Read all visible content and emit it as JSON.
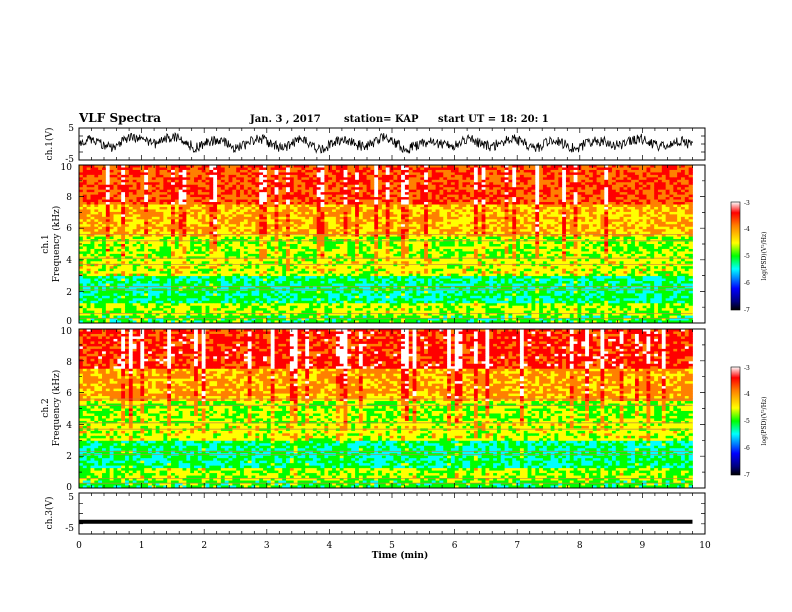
{
  "header": {
    "title": "VLF Spectra",
    "date": "Jan. 3 , 2017",
    "station": "station= KAP",
    "start_time": "start UT =  18: 20: 1"
  },
  "chart_data": [
    {
      "type": "line",
      "id": "ch1-waveform",
      "ylabel": "ch.1(V)",
      "ylim": [
        -5,
        5
      ],
      "y_ticks": [
        "5",
        "-5"
      ],
      "x_range_min": [
        0,
        9.8
      ],
      "baseline": 0
    },
    {
      "type": "heatmap",
      "id": "ch1-spectrogram",
      "ylabel_line1": "ch.1",
      "ylabel_line2": "Frequency (kHz)",
      "ylim": [
        0,
        10
      ],
      "y_ticks": [
        "0",
        "2",
        "4",
        "6",
        "8",
        "10"
      ],
      "x_range_min": [
        0,
        9.8
      ],
      "colorscale": [
        "#000080",
        "#0000ff",
        "#00ffff",
        "#00ff00",
        "#ffff00",
        "#ff8000",
        "#ff0000",
        "#ffffff"
      ],
      "colorbar": {
        "label": "log(PSD)(V²/Hz)",
        "ticks": [
          "-3",
          "-4",
          "-5",
          "-6",
          "-7"
        ],
        "range": [
          -7,
          -3
        ]
      }
    },
    {
      "type": "heatmap",
      "id": "ch2-spectrogram",
      "ylabel_line1": "ch.2",
      "ylabel_line2": "Frequency (kHz)",
      "ylim": [
        0,
        10
      ],
      "y_ticks": [
        "0",
        "2",
        "4",
        "6",
        "8",
        "10"
      ],
      "x_range_min": [
        0,
        9.8
      ],
      "colorscale": [
        "#000080",
        "#0000ff",
        "#00ffff",
        "#00ff00",
        "#ffff00",
        "#ff8000",
        "#ff0000",
        "#ffffff"
      ],
      "colorbar": {
        "label": "log(PSD)(V²/Hz)",
        "ticks": [
          "-3",
          "-4",
          "-5",
          "-6",
          "-7"
        ],
        "range": [
          -7,
          -3
        ]
      }
    },
    {
      "type": "line",
      "id": "ch3-waveform",
      "ylabel": "ch.3(V)",
      "ylim": [
        -5,
        5
      ],
      "y_ticks": [
        "5",
        "-5"
      ],
      "x_range_min": [
        0,
        9.8
      ],
      "constant_value": -2
    }
  ],
  "x_axis": {
    "label": "Time (min)",
    "ticks": [
      "0",
      "1",
      "2",
      "3",
      "4",
      "5",
      "6",
      "7",
      "8",
      "9",
      "10"
    ],
    "range": [
      0,
      10
    ]
  }
}
